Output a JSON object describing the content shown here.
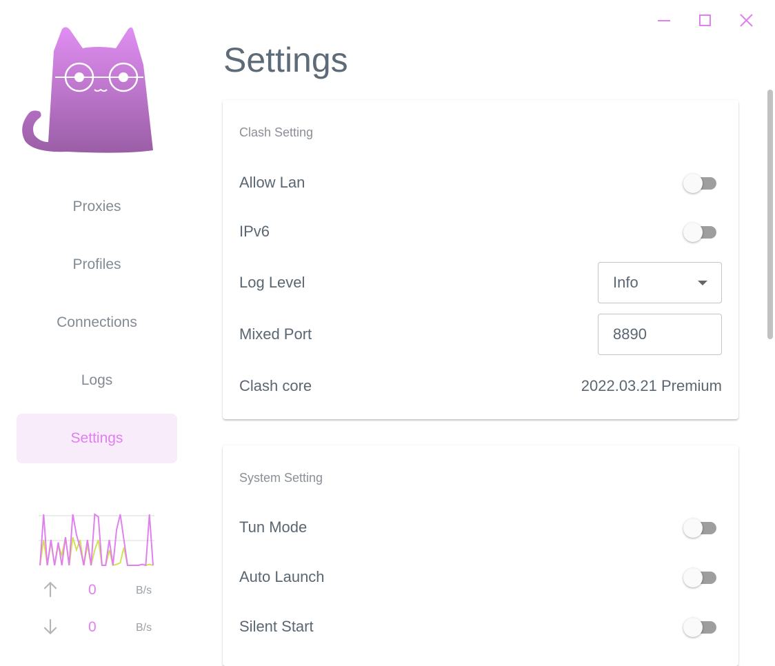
{
  "window": {
    "controls": [
      "minimize",
      "maximize",
      "close"
    ],
    "accent": "#e07ff0"
  },
  "sidebar": {
    "items": [
      {
        "label": "Proxies",
        "active": false
      },
      {
        "label": "Profiles",
        "active": false
      },
      {
        "label": "Connections",
        "active": false
      },
      {
        "label": "Logs",
        "active": false
      },
      {
        "label": "Settings",
        "active": true
      }
    ],
    "traffic": {
      "upload": [
        0,
        1,
        0,
        0.5,
        0,
        0.45,
        0,
        0.55,
        0,
        1,
        0.6,
        0.35,
        0,
        0.5,
        0,
        1,
        0.95,
        0,
        0,
        0.5,
        0,
        0.7,
        1,
        0.5,
        0,
        0,
        0,
        0,
        0.02,
        0,
        1,
        0
      ],
      "download": [
        0,
        0.5,
        0,
        0.45,
        0,
        0.4,
        0.2,
        0.55,
        0,
        0.55,
        0.3,
        0.5,
        0,
        0.4,
        0,
        0.3,
        0.5,
        0,
        0,
        0.3,
        0,
        0.02,
        0.05,
        0.35,
        0,
        0,
        0,
        0,
        0.02,
        0,
        0.02,
        0
      ],
      "upload_color": "#e07ff0",
      "download_color": "#d4e157",
      "up_value": "0",
      "up_unit": "B/s",
      "down_value": "0",
      "down_unit": "B/s"
    }
  },
  "page": {
    "title": "Settings"
  },
  "clash": {
    "title": "Clash Setting",
    "allow_lan": {
      "label": "Allow Lan",
      "on": false
    },
    "ipv6": {
      "label": "IPv6",
      "on": false
    },
    "log_level": {
      "label": "Log Level",
      "value": "Info"
    },
    "mixed_port": {
      "label": "Mixed Port",
      "value": "8890"
    },
    "core": {
      "label": "Clash core",
      "value": "2022.03.21 Premium"
    }
  },
  "system": {
    "title": "System Setting",
    "tun": {
      "label": "Tun Mode",
      "on": false
    },
    "auto_launch": {
      "label": "Auto Launch",
      "on": false
    },
    "silent_start": {
      "label": "Silent Start",
      "on": false
    }
  }
}
